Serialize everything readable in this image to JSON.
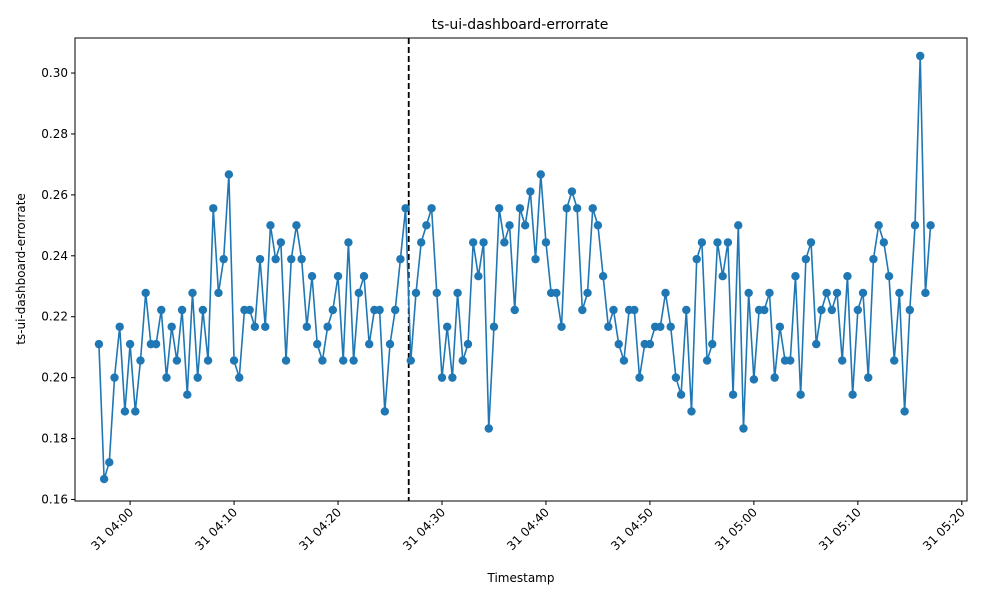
{
  "chart_data": {
    "type": "line",
    "title": "ts-ui-dashboard-errorrate",
    "xlabel": "Timestamp",
    "ylabel": "ts-ui-dashboard-errorrate",
    "series_name": "ts-ui-dashboard-errorrate",
    "line_color": "#1f77b4",
    "marker": "circle",
    "grid": false,
    "start_time": "31 03:57",
    "step_minutes": 0.5,
    "x_range_minutes": [
      -2.3,
      83.5
    ],
    "ylim": [
      0.1595,
      0.3115
    ],
    "x_ticks": [
      {
        "minute": 3,
        "label": "31 04:00"
      },
      {
        "minute": 13,
        "label": "31 04:10"
      },
      {
        "minute": 23,
        "label": "31 04:20"
      },
      {
        "minute": 33,
        "label": "31 04:30"
      },
      {
        "minute": 43,
        "label": "31 04:40"
      },
      {
        "minute": 53,
        "label": "31 04:50"
      },
      {
        "minute": 63,
        "label": "31 05:00"
      },
      {
        "minute": 73,
        "label": "31 05:10"
      },
      {
        "minute": 83,
        "label": "31 05:20"
      }
    ],
    "y_ticks": [
      {
        "value": 0.16,
        "label": "0.16"
      },
      {
        "value": 0.18,
        "label": "0.18"
      },
      {
        "value": 0.2,
        "label": "0.20"
      },
      {
        "value": 0.22,
        "label": "0.22"
      },
      {
        "value": 0.24,
        "label": "0.24"
      },
      {
        "value": 0.26,
        "label": "0.26"
      },
      {
        "value": 0.28,
        "label": "0.28"
      },
      {
        "value": 0.3,
        "label": "0.30"
      }
    ],
    "vline": {
      "minute": 29.8,
      "style": "dashed",
      "color": "#000000"
    },
    "values": [
      0.211,
      0.1667,
      0.1722,
      0.2,
      0.2167,
      0.1889,
      0.211,
      0.1889,
      0.2056,
      0.2278,
      0.211,
      0.211,
      0.2222,
      0.2,
      0.2167,
      0.2056,
      0.2222,
      0.1944,
      0.2278,
      0.2,
      0.2222,
      0.2056,
      0.2556,
      0.2278,
      0.2389,
      0.2667,
      0.2056,
      0.2,
      0.2222,
      0.2222,
      0.2167,
      0.2389,
      0.2167,
      0.25,
      0.2389,
      0.2444,
      0.2056,
      0.2389,
      0.25,
      0.2389,
      0.2167,
      0.2333,
      0.211,
      0.2056,
      0.2167,
      0.2222,
      0.2333,
      0.2056,
      0.2444,
      0.2056,
      0.2278,
      0.2333,
      0.211,
      0.2222,
      0.2222,
      0.1889,
      0.211,
      0.2222,
      0.2389,
      0.2556,
      0.2056,
      0.2278,
      0.2444,
      0.25,
      0.2556,
      0.2278,
      0.2,
      0.2167,
      0.2,
      0.2278,
      0.2056,
      0.211,
      0.2444,
      0.2333,
      0.2444,
      0.1833,
      0.2167,
      0.2556,
      0.2444,
      0.25,
      0.2222,
      0.2556,
      0.25,
      0.2611,
      0.2389,
      0.2667,
      0.2444,
      0.2278,
      0.2278,
      0.2167,
      0.2556,
      0.2611,
      0.2556,
      0.2222,
      0.2278,
      0.2556,
      0.25,
      0.2333,
      0.2167,
      0.2222,
      0.211,
      0.2056,
      0.2222,
      0.2222,
      0.2,
      0.211,
      0.211,
      0.2167,
      0.2167,
      0.2278,
      0.2167,
      0.2,
      0.1944,
      0.2222,
      0.1889,
      0.2389,
      0.2444,
      0.2056,
      0.211,
      0.2444,
      0.2333,
      0.2444,
      0.1944,
      0.25,
      0.1833,
      0.2278,
      0.1994,
      0.2222,
      0.2222,
      0.2278,
      0.2,
      0.2167,
      0.2056,
      0.2056,
      0.2333,
      0.1944,
      0.2389,
      0.2444,
      0.211,
      0.2222,
      0.2278,
      0.2222,
      0.2278,
      0.2056,
      0.2333,
      0.1944,
      0.2222,
      0.2278,
      0.2,
      0.2389,
      0.25,
      0.2444,
      0.2333,
      0.2056,
      0.2278,
      0.1889,
      0.2222,
      0.25,
      0.3056,
      0.2278,
      0.25
    ]
  }
}
